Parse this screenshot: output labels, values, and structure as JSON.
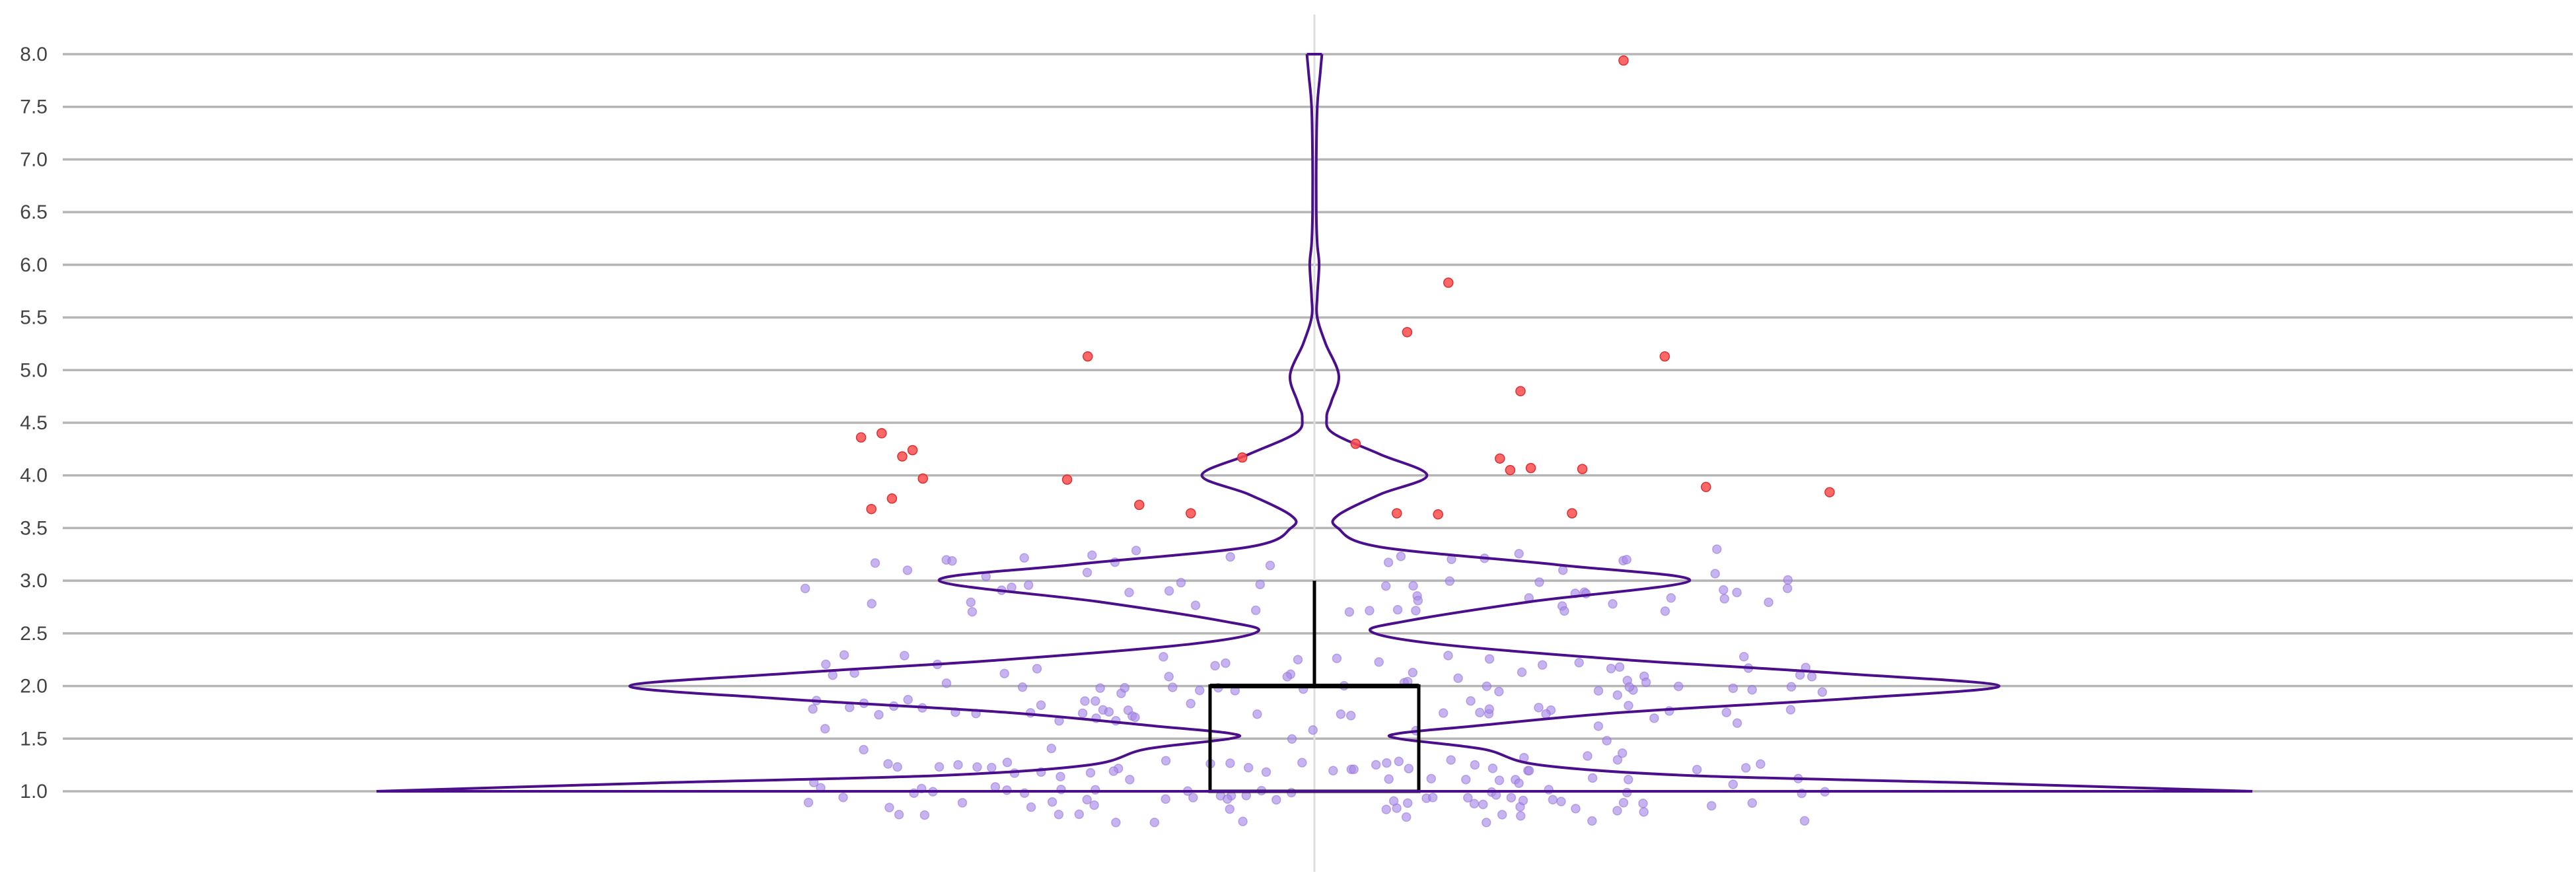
{
  "chart_data": {
    "type": "violin",
    "title": "",
    "xlabel": "",
    "ylabel": "",
    "ylim": [
      1.0,
      8.0
    ],
    "y_ticks": [
      "1.0",
      "1.5",
      "2.0",
      "2.5",
      "3.0",
      "3.5",
      "4.0",
      "4.5",
      "5.0",
      "5.5",
      "6.0",
      "6.5",
      "7.0",
      "7.5",
      "8.0"
    ],
    "grid": "horizontal",
    "colors": {
      "violin_outline": "#4b0f8c",
      "inlier_points": "#a98be6",
      "outlier_points": "#ff4d4d",
      "box": "#000000",
      "grid": "#b5b5b5",
      "center_line": "#dddddd",
      "tick_text": "#444444"
    },
    "box": {
      "q1": 1.0,
      "median": 2.0,
      "q3": 2.0,
      "whisker_low": 1.0,
      "whisker_high": 3.0
    },
    "density_profile": [
      [
        1.0,
        1.0
      ],
      [
        1.08,
        0.7
      ],
      [
        1.15,
        0.4
      ],
      [
        1.25,
        0.24
      ],
      [
        1.4,
        0.18
      ],
      [
        1.5,
        0.09
      ],
      [
        1.55,
        0.09
      ],
      [
        1.62,
        0.17
      ],
      [
        1.75,
        0.33
      ],
      [
        1.88,
        0.57
      ],
      [
        2.0,
        0.73
      ],
      [
        2.12,
        0.56
      ],
      [
        2.25,
        0.33
      ],
      [
        2.4,
        0.13
      ],
      [
        2.52,
        0.06
      ],
      [
        2.62,
        0.1
      ],
      [
        2.8,
        0.23
      ],
      [
        3.0,
        0.4
      ],
      [
        3.15,
        0.26
      ],
      [
        3.32,
        0.07
      ],
      [
        3.5,
        0.025
      ],
      [
        3.62,
        0.025
      ],
      [
        3.82,
        0.07
      ],
      [
        4.0,
        0.12
      ],
      [
        4.2,
        0.07
      ],
      [
        4.4,
        0.02
      ],
      [
        4.55,
        0.013
      ],
      [
        4.7,
        0.018
      ],
      [
        4.95,
        0.026
      ],
      [
        5.25,
        0.012
      ],
      [
        5.5,
        0.003
      ],
      [
        5.7,
        0.003
      ],
      [
        6.0,
        0.005
      ],
      [
        6.2,
        0.003
      ],
      [
        6.5,
        0.002
      ],
      [
        7.0,
        0.002
      ],
      [
        7.5,
        0.003
      ],
      [
        7.8,
        0.006
      ],
      [
        8.0,
        0.008
      ]
    ],
    "inlier_values": [
      1.0,
      1.0,
      1.0,
      1.0,
      1.0,
      1.0,
      1.0,
      1.0,
      1.0,
      1.0,
      1.0,
      1.0,
      1.0,
      1.0,
      1.0,
      1.0,
      1.0,
      1.0,
      1.0,
      1.0,
      1.0,
      1.0,
      1.0,
      1.0,
      1.0,
      1.0,
      1.0,
      1.0,
      1.0,
      1.0,
      1.0,
      1.0,
      1.0,
      1.0,
      1.0,
      1.0,
      1.0,
      1.0,
      1.0,
      1.0,
      1.0,
      1.0,
      1.0,
      1.0,
      1.0,
      1.0,
      1.0,
      1.0,
      1.0,
      1.0,
      1.0,
      1.0,
      1.0,
      1.0,
      1.0,
      1.0,
      1.0,
      1.0,
      1.0,
      1.0,
      1.0,
      1.0,
      1.0,
      1.0,
      1.0,
      1.0,
      1.0,
      1.0,
      1.0,
      1.0,
      1.0,
      1.0,
      1.0,
      1.0,
      1.0,
      1.0,
      1.0,
      1.0,
      1.0,
      1.0,
      1.0,
      1.0,
      1.0,
      1.0,
      1.0,
      1.0,
      1.0,
      1.0,
      1.0,
      1.0,
      1.0,
      1.0,
      1.0,
      1.0,
      1.0,
      1.0,
      1.0,
      1.0,
      1.0,
      1.0,
      1.0,
      1.0,
      1.0,
      1.0,
      1.0,
      1.0,
      1.0,
      1.0,
      1.0,
      1.0,
      1.5,
      1.5,
      1.5,
      1.5,
      1.5,
      1.5,
      1.5,
      1.5,
      1.5,
      1.5,
      1.5,
      1.5,
      1.5,
      1.5,
      1.5,
      1.5,
      1.5,
      1.5,
      1.5,
      1.5,
      1.5,
      1.5,
      1.5,
      1.5,
      1.5,
      1.5,
      1.5,
      1.5,
      1.5,
      1.5,
      2.0,
      2.0,
      2.0,
      2.0,
      2.0,
      2.0,
      2.0,
      2.0,
      2.0,
      2.0,
      2.0,
      2.0,
      2.0,
      2.0,
      2.0,
      2.0,
      2.0,
      2.0,
      2.0,
      2.0,
      2.0,
      2.0,
      2.0,
      2.0,
      2.0,
      2.0,
      2.0,
      2.0,
      2.0,
      2.0,
      2.0,
      2.0,
      2.0,
      2.0,
      2.0,
      2.0,
      2.0,
      2.0,
      2.0,
      2.0,
      2.0,
      2.0,
      2.0,
      2.0,
      2.0,
      2.0,
      2.0,
      2.0,
      2.0,
      2.0,
      2.0,
      2.0,
      2.0,
      2.0,
      2.0,
      2.0,
      2.0,
      2.0,
      2.0,
      2.0,
      2.0,
      2.0,
      2.0,
      2.0,
      2.0,
      2.0,
      2.0,
      2.0,
      2.0,
      2.0,
      2.0,
      2.0,
      2.0,
      2.0,
      2.0,
      2.0,
      2.0,
      2.0,
      2.0,
      2.0,
      2.0,
      2.0,
      2.0,
      2.0,
      2.0,
      3.0,
      3.0,
      3.0,
      3.0,
      3.0,
      3.0,
      3.0,
      3.0,
      3.0,
      3.0,
      3.0,
      3.0,
      3.0,
      3.0,
      3.0,
      3.0,
      3.0,
      3.0,
      3.0,
      3.0,
      3.0,
      3.0,
      3.0,
      3.0,
      3.0,
      3.0,
      3.0,
      3.0,
      3.0,
      3.0,
      3.0,
      3.0,
      3.0,
      3.0,
      3.0,
      3.0,
      3.0,
      3.0,
      3.0,
      3.0,
      3.0,
      3.0,
      3.0,
      3.0,
      3.0,
      3.0,
      3.0,
      3.0,
      3.0,
      3.0,
      3.0,
      3.0,
      3.0,
      3.0,
      3.0,
      3.0,
      3.0,
      3.0,
      3.0,
      3.0
    ],
    "outliers": [
      [
        -0.44,
        4.36
      ],
      [
        -0.42,
        4.4
      ],
      [
        -0.4,
        4.18
      ],
      [
        -0.39,
        4.24
      ],
      [
        -0.43,
        3.68
      ],
      [
        -0.41,
        3.78
      ],
      [
        -0.38,
        3.97
      ],
      [
        -0.22,
        5.13
      ],
      [
        -0.24,
        3.96
      ],
      [
        -0.17,
        3.72
      ],
      [
        -0.12,
        3.64
      ],
      [
        -0.07,
        4.17
      ],
      [
        0.04,
        4.3
      ],
      [
        0.08,
        3.64
      ],
      [
        0.09,
        5.36
      ],
      [
        0.12,
        3.63
      ],
      [
        0.13,
        5.83
      ],
      [
        0.18,
        4.16
      ],
      [
        0.19,
        4.05
      ],
      [
        0.2,
        4.8
      ],
      [
        0.21,
        4.07
      ],
      [
        0.25,
        3.64
      ],
      [
        0.26,
        4.06
      ],
      [
        0.3,
        7.94
      ],
      [
        0.34,
        5.13
      ],
      [
        0.38,
        3.89
      ],
      [
        0.5,
        3.84
      ]
    ]
  }
}
